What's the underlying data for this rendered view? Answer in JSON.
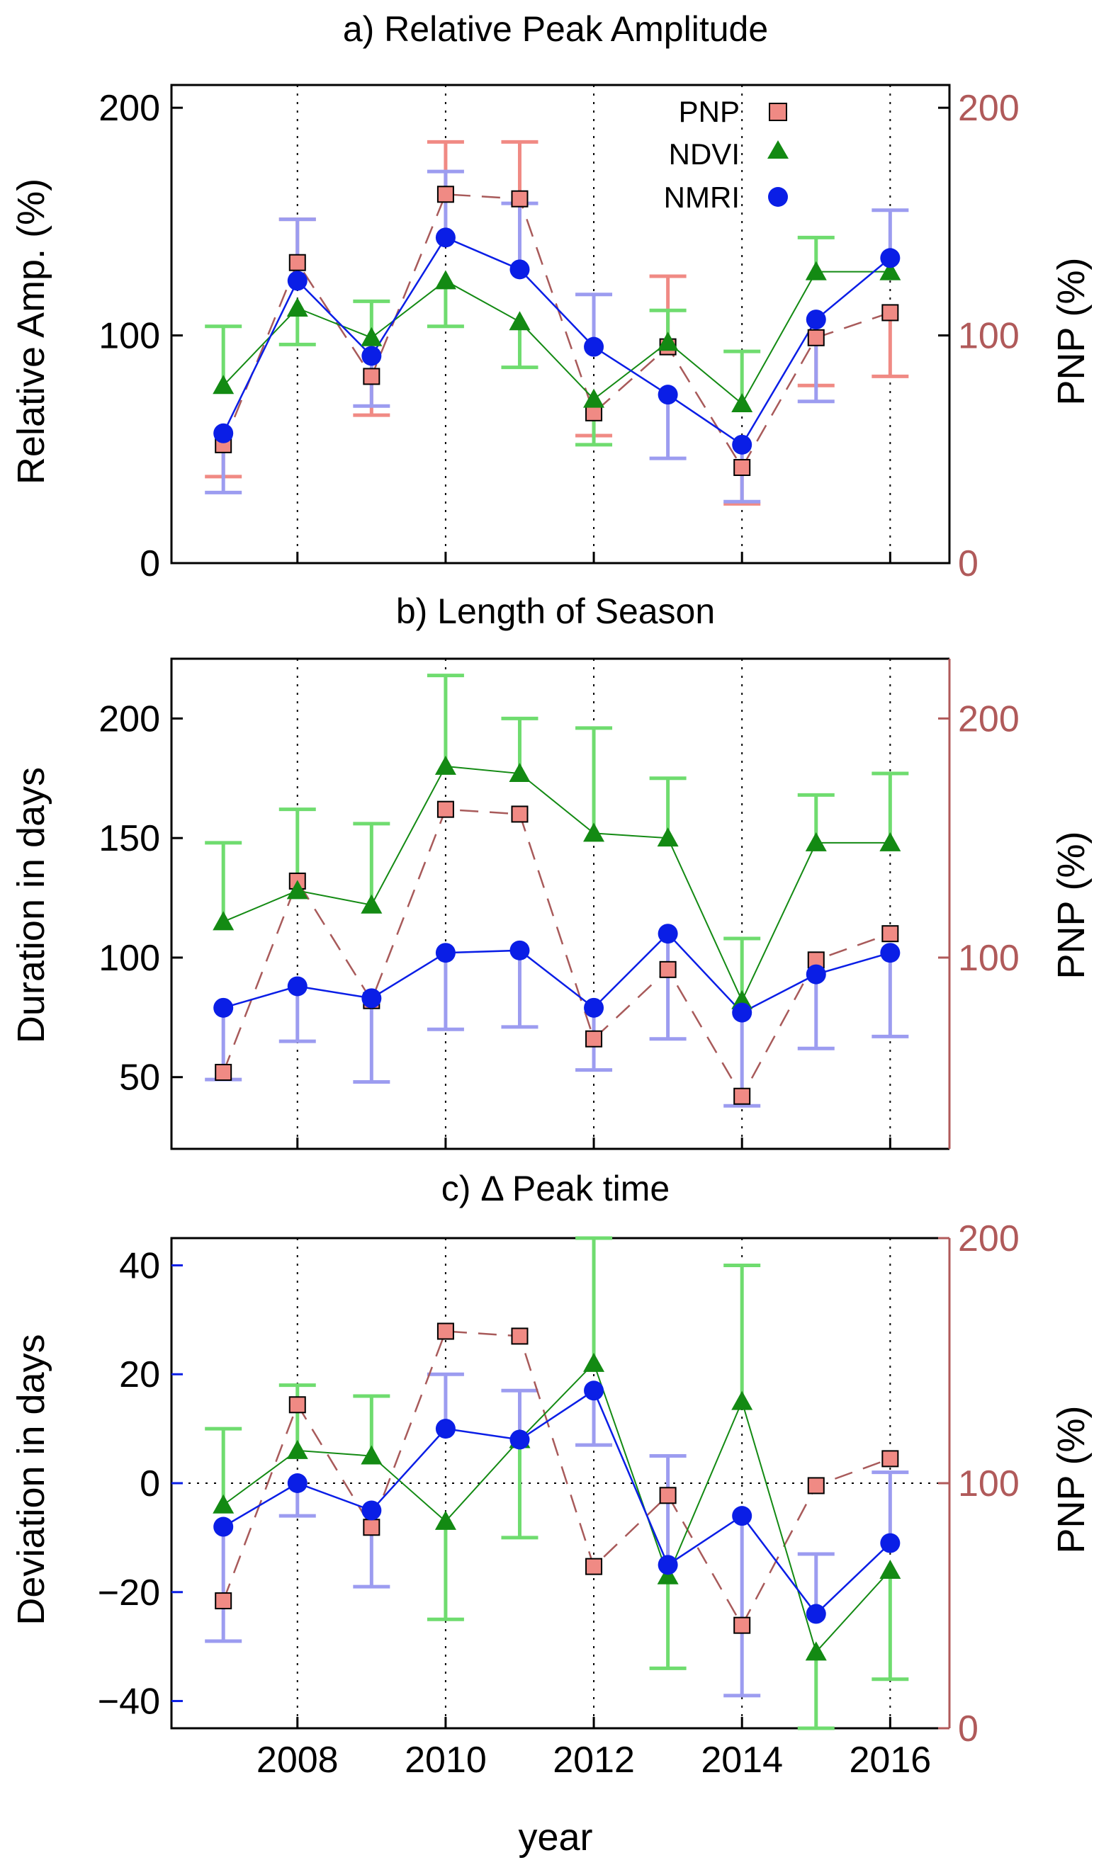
{
  "colors": {
    "pnp": "#f08a84",
    "pnp_line": "#a85a5a",
    "pnp_axis": "#b05a5a",
    "ndvi": "#138a13",
    "ndvi_err": "#6fdc6f",
    "nmri": "#0a1ee6",
    "nmri_err": "#9c9cf0"
  },
  "xlabel": "year",
  "legend": [
    "PNP",
    "NDVI",
    "NMRI"
  ],
  "chart_data": [
    {
      "type": "line",
      "title": "a)  Relative Peak Amplitude",
      "ylabel": "Relative Amp. (%)",
      "ylabel_right": "PNP (%)",
      "x": [
        2007,
        2008,
        2009,
        2010,
        2011,
        2012,
        2013,
        2014,
        2015,
        2016
      ],
      "xlim": [
        2006.3,
        2016.8
      ],
      "ylim": [
        0,
        210
      ],
      "yticks": [
        0,
        100,
        200
      ],
      "ylim_right": [
        0,
        210
      ],
      "yticks_right": [
        0,
        100,
        200
      ],
      "xgrid": [
        2008,
        2010,
        2012,
        2014,
        2016
      ],
      "series": [
        {
          "name": "PNP",
          "axis": "right",
          "values": [
            52,
            132,
            82,
            162,
            160,
            66,
            95,
            42,
            99,
            110
          ],
          "err_low": [
            38,
            132,
            65,
            162,
            160,
            56,
            95,
            26,
            78,
            82
          ],
          "err_high": [
            52,
            151,
            82,
            185,
            185,
            66,
            126,
            42,
            99,
            110
          ]
        },
        {
          "name": "NDVI",
          "axis": "left",
          "values": [
            78,
            112,
            99,
            124,
            106,
            72,
            97,
            70,
            128,
            128
          ],
          "err_low": [
            78,
            96,
            99,
            104,
            86,
            52,
            97,
            70,
            128,
            128
          ],
          "err_high": [
            104,
            112,
            115,
            124,
            106,
            72,
            111,
            93,
            143,
            128
          ]
        },
        {
          "name": "NMRI",
          "axis": "left",
          "values": [
            57,
            124,
            91,
            143,
            129,
            95,
            74,
            52,
            107,
            134
          ],
          "err_low": [
            31,
            124,
            69,
            143,
            129,
            95,
            46,
            27,
            71,
            134
          ],
          "err_high": [
            57,
            151,
            91,
            172,
            158,
            118,
            74,
            52,
            107,
            155
          ]
        }
      ]
    },
    {
      "type": "line",
      "title": "b)  Length of Season",
      "ylabel": "Duration in days",
      "ylabel_right": "PNP (%)",
      "x": [
        2007,
        2008,
        2009,
        2010,
        2011,
        2012,
        2013,
        2014,
        2015,
        2016
      ],
      "xlim": [
        2006.3,
        2016.8
      ],
      "ylim": [
        20,
        225
      ],
      "yticks": [
        50,
        100,
        150,
        200
      ],
      "ylim_right": [
        20,
        225
      ],
      "yticks_right": [
        100,
        200
      ],
      "xgrid": [
        2008,
        2010,
        2012,
        2014,
        2016
      ],
      "series": [
        {
          "name": "PNP",
          "axis": "right",
          "values": [
            52,
            132,
            82,
            162,
            160,
            66,
            95,
            42,
            99,
            110
          ]
        },
        {
          "name": "NDVI",
          "axis": "left",
          "values": [
            115,
            128,
            122,
            180,
            177,
            152,
            150,
            82,
            148,
            148
          ],
          "err_low": [
            115,
            128,
            122,
            180,
            177,
            152,
            150,
            82,
            148,
            148
          ],
          "err_high": [
            148,
            162,
            156,
            218,
            200,
            196,
            175,
            108,
            168,
            177
          ]
        },
        {
          "name": "NMRI",
          "axis": "left",
          "values": [
            79,
            88,
            83,
            102,
            103,
            79,
            110,
            77,
            93,
            102
          ],
          "err_low": [
            49,
            65,
            48,
            70,
            71,
            53,
            66,
            38,
            62,
            67
          ],
          "err_high": [
            79,
            88,
            83,
            102,
            103,
            79,
            110,
            77,
            93,
            102
          ]
        }
      ]
    },
    {
      "type": "line",
      "title": "c)   Δ Peak time",
      "ylabel": "Deviation in days",
      "ylabel_right": "PNP (%)",
      "x": [
        2007,
        2008,
        2009,
        2010,
        2011,
        2012,
        2013,
        2014,
        2015,
        2016
      ],
      "xlim": [
        2006.3,
        2016.8
      ],
      "ylim": [
        -45,
        45
      ],
      "yticks": [
        -40,
        -20,
        0,
        20,
        40
      ],
      "ylim_right": [
        0,
        200
      ],
      "yticks_right": [
        0,
        100,
        200
      ],
      "xticks": [
        2008,
        2010,
        2012,
        2014,
        2016
      ],
      "xgrid": [
        2008,
        2010,
        2012,
        2014,
        2016
      ],
      "series": [
        {
          "name": "PNP",
          "axis": "right",
          "values": [
            52,
            132,
            82,
            162,
            160,
            66,
            95,
            42,
            99,
            110
          ]
        },
        {
          "name": "NDVI",
          "axis": "left",
          "values": [
            -4,
            6,
            5,
            -7,
            8,
            22,
            -17,
            15,
            -31,
            -16
          ],
          "err_low": [
            -4,
            6,
            5,
            -25,
            -10,
            22,
            -34,
            15,
            -45,
            -36
          ],
          "err_high": [
            10,
            18,
            16,
            -7,
            8,
            45,
            -17,
            40,
            -31,
            -16
          ]
        },
        {
          "name": "NMRI",
          "axis": "left",
          "values": [
            -8,
            0,
            -5,
            10,
            8,
            17,
            -15,
            -6,
            -24,
            -11
          ],
          "err_low": [
            -29,
            -6,
            -19,
            10,
            8,
            7,
            -15,
            -39,
            -24,
            -11
          ],
          "err_high": [
            -8,
            0,
            -5,
            20,
            17,
            17,
            5,
            -6,
            -13,
            2
          ]
        }
      ]
    }
  ]
}
